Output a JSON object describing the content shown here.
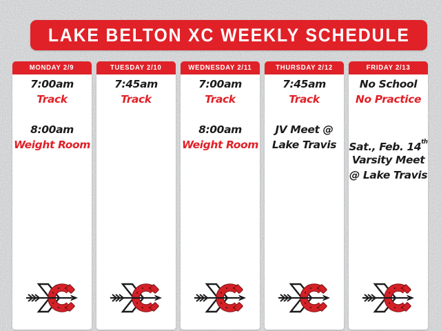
{
  "poster": {
    "title": "LAKE BELTON XC WEEKLY SCHEDULE"
  },
  "colors": {
    "red": "#e02128",
    "background_silver": "#aeb1b3",
    "text_black": "#1b1b1d",
    "column_white": "#ffffff"
  },
  "columns": [
    {
      "day": "MONDAY 2/9",
      "lines": [
        {
          "text": "7:00am",
          "color": "black"
        },
        {
          "text": "Track",
          "color": "red"
        },
        {
          "text": "",
          "color": "black"
        },
        {
          "text": "8:00am",
          "color": "black"
        },
        {
          "text": "Weight Room",
          "color": "red"
        }
      ]
    },
    {
      "day": "TUESDAY 2/10",
      "lines": [
        {
          "text": "7:45am",
          "color": "black"
        },
        {
          "text": "Track",
          "color": "red"
        }
      ]
    },
    {
      "day": "WEDNESDAY 2/11",
      "lines": [
        {
          "text": "7:00am",
          "color": "black"
        },
        {
          "text": "Track",
          "color": "red"
        },
        {
          "text": "",
          "color": "black"
        },
        {
          "text": "8:00am",
          "color": "black"
        },
        {
          "text": "Weight Room",
          "color": "red"
        }
      ]
    },
    {
      "day": "THURSDAY 2/12",
      "lines": [
        {
          "text": "7:45am",
          "color": "black"
        },
        {
          "text": "Track",
          "color": "red"
        },
        {
          "text": "",
          "color": "black"
        },
        {
          "text": "JV Meet @",
          "color": "black"
        },
        {
          "text": "Lake Travis",
          "color": "black"
        }
      ]
    },
    {
      "day": "FRIDAY 2/13",
      "lines": [
        {
          "text": "No School",
          "color": "black"
        },
        {
          "text": "No Practice",
          "color": "red"
        },
        {
          "text": "",
          "color": "black"
        },
        {
          "text": "",
          "color": "black"
        },
        {
          "text": "Sat., Feb. 14",
          "sup": "th",
          "color": "black"
        },
        {
          "text": "Varsity Meet",
          "color": "black"
        },
        {
          "text": "@ Lake Travis",
          "color": "black"
        }
      ]
    }
  ],
  "layout": {
    "column_lefts": [
      18,
      140,
      262,
      384,
      506
    ]
  },
  "logo": {
    "name": "lake-belton-xc-arrow-horseshoe-logo"
  }
}
